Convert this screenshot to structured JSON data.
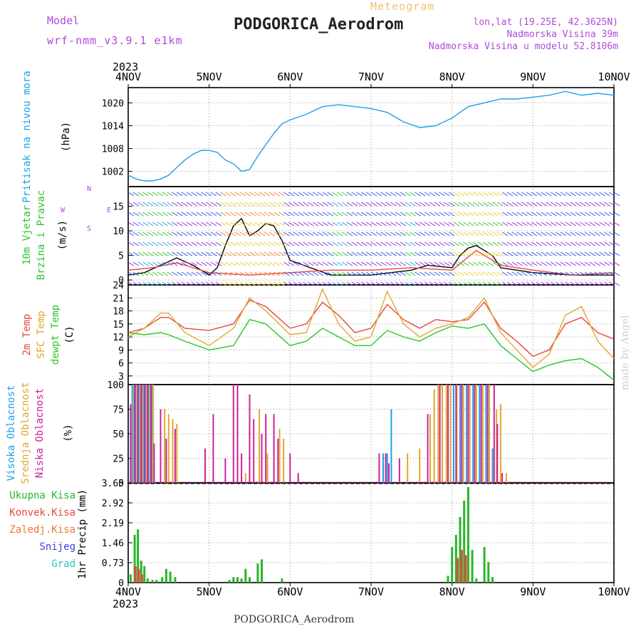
{
  "header": {
    "model_label": "Model",
    "model_version": "wrf-nmm_v3.9.1 e1km",
    "product": "Meteogram",
    "station": "PODGORICA_Aerodrom",
    "lonlat": "lon,lat (19.25E, 42.3625N)",
    "elevation": "Nadmorska Visina 39m",
    "model_elevation": "Nadmorska Visina u modelu 52.8106m"
  },
  "footer": {
    "station": "PODGORICA_Aerodrom",
    "credit": "made by Angel"
  },
  "colors": {
    "pressure": "#1ea0e6",
    "wind_label": "#30c030",
    "wind_units": "#b04ad8",
    "temp2m": "#e8463c",
    "sfc": "#e0a830",
    "dewpt": "#28c828",
    "high_cloud": "#1ea0e6",
    "mid_cloud": "#e0a830",
    "low_cloud": "#cc2299",
    "total_precip": "#2ab42a",
    "conv_precip": "#e8463c",
    "frz_precip": "#f07830",
    "snow": "#4040e0",
    "hail": "#30c0c0"
  },
  "chart_data": [
    {
      "type": "line",
      "id": "pressure",
      "ylabel": "Pritisak na nivou mora",
      "units": "(hPa)",
      "x_ticks": [
        "4NOV",
        "5NOV",
        "6NOV",
        "7NOV",
        "8NOV",
        "9NOV",
        "10NOV"
      ],
      "x_year": "2023",
      "ylim": [
        998,
        1024
      ],
      "yticks": [
        1002,
        1008,
        1014,
        1020
      ],
      "grid": true,
      "series": [
        {
          "color": "#1ea0e6",
          "x": [
            0,
            0.1,
            0.2,
            0.3,
            0.4,
            0.5,
            0.6,
            0.7,
            0.8,
            0.9,
            1.0,
            1.1,
            1.2,
            1.3,
            1.4,
            1.5,
            1.6,
            1.7,
            1.8,
            1.9,
            2.0,
            2.2,
            2.4,
            2.6,
            2.8,
            3.0,
            3.2,
            3.4,
            3.6,
            3.8,
            4.0,
            4.2,
            4.4,
            4.6,
            4.8,
            5.0,
            5.2,
            5.4,
            5.6,
            5.8,
            6.0
          ],
          "values": [
            1001,
            1000,
            999.5,
            999.5,
            1000,
            1001,
            1003,
            1005,
            1006.5,
            1007.5,
            1007.5,
            1007,
            1005,
            1004,
            1002,
            1002.5,
            1006,
            1009,
            1012,
            1014.5,
            1015.5,
            1017,
            1019,
            1019.5,
            1019,
            1018.5,
            1017.5,
            1015,
            1013.5,
            1014,
            1016,
            1019,
            1020,
            1021,
            1021,
            1021.5,
            1022,
            1023,
            1022,
            1022.5,
            1022
          ]
        }
      ]
    },
    {
      "type": "line",
      "id": "wind",
      "ylabel": [
        "10m Vjetar",
        "Brzina i Pravac"
      ],
      "units": "(m/s)",
      "compass": [
        "N",
        "E",
        "S",
        "W"
      ],
      "ylim": [
        -1,
        19
      ],
      "yticks": [
        0,
        5,
        10,
        15
      ],
      "grid": true,
      "series": [
        {
          "color": "#000000",
          "x": [
            0,
            0.2,
            0.4,
            0.6,
            0.8,
            1.0,
            1.1,
            1.2,
            1.3,
            1.4,
            1.5,
            1.6,
            1.7,
            1.8,
            1.9,
            2.0,
            2.5,
            3.0,
            3.5,
            3.7,
            4.0,
            4.1,
            4.2,
            4.3,
            4.4,
            4.5,
            4.6,
            4.8,
            5.0,
            5.5,
            6.0
          ],
          "values": [
            1,
            1.5,
            3,
            4.5,
            3,
            1,
            2.5,
            7,
            11,
            12.5,
            9,
            10,
            11.5,
            11,
            8,
            4,
            1,
            1,
            2,
            3,
            2.5,
            5,
            6.5,
            7,
            6,
            5,
            2.5,
            2,
            1.5,
            1,
            1
          ]
        },
        {
          "color": "#e8463c",
          "x": [
            0,
            0.3,
            0.6,
            1.0,
            1.5,
            2.0,
            2.5,
            3.0,
            3.5,
            4.0,
            4.3,
            4.6,
            5.0,
            5.5,
            6.0
          ],
          "values": [
            2,
            2.5,
            3.5,
            1.5,
            1,
            1.5,
            2,
            2,
            2.5,
            2,
            6,
            3,
            2,
            1,
            1.5
          ]
        }
      ]
    },
    {
      "type": "line",
      "id": "temperature",
      "ylabel": [
        "2m Temp",
        "SFC Temp",
        "dewpt Temp"
      ],
      "units": "(C)",
      "ylim": [
        1,
        24
      ],
      "yticks": [
        3,
        6,
        9,
        12,
        15,
        18,
        21,
        24
      ],
      "grid": true,
      "series": [
        {
          "name": "2m Temp",
          "color": "#e8463c",
          "x": [
            0,
            0.2,
            0.4,
            0.5,
            0.7,
            1.0,
            1.3,
            1.5,
            1.7,
            2.0,
            2.2,
            2.4,
            2.6,
            2.8,
            3.0,
            3.2,
            3.4,
            3.6,
            3.8,
            4.0,
            4.2,
            4.4,
            4.6,
            4.8,
            5.0,
            5.2,
            5.4,
            5.6,
            5.8,
            6.0
          ],
          "values": [
            13,
            14,
            16.5,
            16.5,
            14,
            13.5,
            15,
            20.5,
            19,
            14,
            15,
            20,
            17,
            13,
            14,
            19.5,
            16,
            14,
            16,
            15.5,
            16,
            20,
            14,
            11,
            7.5,
            9,
            15,
            16.5,
            13,
            11.5
          ]
        },
        {
          "name": "SFC Temp",
          "color": "#e0a830",
          "x": [
            0,
            0.2,
            0.4,
            0.5,
            0.7,
            1.0,
            1.3,
            1.5,
            1.7,
            2.0,
            2.2,
            2.4,
            2.6,
            2.8,
            3.0,
            3.2,
            3.4,
            3.6,
            3.8,
            4.0,
            4.2,
            4.4,
            4.6,
            4.8,
            5.0,
            5.2,
            5.4,
            5.6,
            5.8,
            6.0
          ],
          "values": [
            12,
            14,
            17.5,
            17.5,
            13,
            10,
            14,
            21,
            18,
            12.5,
            13,
            23,
            15,
            11,
            12,
            22.5,
            15,
            12,
            14,
            15,
            16.5,
            21,
            13,
            9,
            5,
            8,
            17,
            19,
            11,
            7
          ]
        },
        {
          "name": "dewpt Temp",
          "color": "#28c828",
          "x": [
            0,
            0.2,
            0.4,
            0.5,
            0.7,
            1.0,
            1.3,
            1.5,
            1.7,
            2.0,
            2.2,
            2.4,
            2.6,
            2.8,
            3.0,
            3.2,
            3.4,
            3.6,
            3.8,
            4.0,
            4.2,
            4.4,
            4.6,
            4.8,
            5.0,
            5.2,
            5.4,
            5.6,
            5.8,
            6.0
          ],
          "values": [
            13,
            12.5,
            13,
            12.5,
            11,
            9,
            10,
            16,
            15,
            10,
            11,
            14,
            12,
            10,
            10,
            13.5,
            12,
            11,
            13,
            14.5,
            14,
            15,
            10,
            7,
            4,
            5.5,
            6.5,
            7,
            5,
            2
          ]
        }
      ]
    },
    {
      "type": "bar",
      "id": "clouds",
      "ylabel": [
        "Visoka Oblacnost",
        "Srednja Oblacnost",
        "Niska Oblacnost"
      ],
      "units": "(%)",
      "ylim": [
        0,
        100
      ],
      "yticks": [
        0,
        25,
        50,
        75,
        100
      ],
      "grid": true,
      "series": [
        {
          "name": "Visoka Oblacnost",
          "color": "#1ea0e6",
          "x": [
            0.05,
            0.09,
            0.13,
            0.17,
            0.21,
            0.25,
            0.29,
            3.15,
            3.2,
            3.25,
            4.02,
            4.1,
            4.18,
            4.26,
            4.34,
            4.42,
            4.5
          ],
          "values": [
            100,
            100,
            100,
            100,
            100,
            100,
            100,
            30,
            30,
            75,
            100,
            100,
            100,
            100,
            100,
            100,
            35
          ]
        },
        {
          "name": "Srednja Oblacnost",
          "color": "#e0a830",
          "x": [
            0.07,
            0.11,
            0.15,
            0.19,
            0.23,
            0.27,
            0.31,
            0.45,
            0.5,
            0.55,
            0.6,
            1.45,
            1.62,
            1.72,
            1.87,
            1.92,
            3.45,
            3.6,
            3.73,
            3.78,
            3.83,
            3.88,
            3.93,
            3.98,
            4.06,
            4.14,
            4.22,
            4.3,
            4.38,
            4.46,
            4.55,
            4.6,
            4.67
          ],
          "values": [
            100,
            100,
            100,
            100,
            100,
            100,
            100,
            75,
            70,
            65,
            60,
            10,
            75,
            30,
            55,
            45,
            30,
            35,
            70,
            95,
            100,
            100,
            100,
            100,
            100,
            100,
            100,
            100,
            100,
            100,
            75,
            80,
            10
          ]
        },
        {
          "name": "Niska Oblacnost",
          "color": "#cc2299",
          "x": [
            0.03,
            0.08,
            0.12,
            0.16,
            0.2,
            0.24,
            0.28,
            0.32,
            0.4,
            0.47,
            0.58,
            0.95,
            1.05,
            1.2,
            1.3,
            1.35,
            1.4,
            1.5,
            1.55,
            1.65,
            1.7,
            1.8,
            1.85,
            2.0,
            2.1,
            3.1,
            3.18,
            3.22,
            3.35,
            3.7,
            3.85,
            3.95,
            4.05,
            4.12,
            4.2,
            4.28,
            4.36,
            4.44,
            4.52,
            4.56,
            4.62
          ],
          "values": [
            80,
            100,
            100,
            100,
            100,
            100,
            100,
            40,
            75,
            45,
            55,
            35,
            70,
            25,
            100,
            100,
            30,
            90,
            65,
            50,
            70,
            70,
            45,
            30,
            10,
            30,
            30,
            20,
            25,
            70,
            100,
            100,
            100,
            100,
            100,
            100,
            100,
            100,
            100,
            60,
            10
          ]
        }
      ]
    },
    {
      "type": "bar",
      "id": "precip",
      "ylabel": "1hr Precip (mm)",
      "legend": [
        "Ukupna Kisa",
        "Konvek.Kisa",
        "Zaledj.Kisa",
        "Snijeg",
        "Grad"
      ],
      "ylim": [
        0,
        3.65
      ],
      "yticks": [
        0,
        0.73,
        1.46,
        2.19,
        2.92,
        3.65
      ],
      "grid": true,
      "series": [
        {
          "name": "Ukupna Kisa",
          "color": "#2ab42a",
          "x": [
            0.03,
            0.08,
            0.12,
            0.16,
            0.2,
            0.24,
            0.3,
            0.35,
            0.42,
            0.47,
            0.52,
            0.58,
            1.25,
            1.3,
            1.35,
            1.4,
            1.45,
            1.5,
            1.6,
            1.65,
            1.9,
            3.95,
            4.0,
            4.05,
            4.1,
            4.15,
            4.2,
            4.25,
            4.3,
            4.4,
            4.45,
            4.5
          ],
          "values": [
            0.3,
            1.75,
            1.95,
            0.8,
            0.6,
            0.15,
            0.1,
            0.1,
            0.2,
            0.5,
            0.4,
            0.2,
            0.1,
            0.2,
            0.2,
            0.15,
            0.5,
            0.2,
            0.7,
            0.85,
            0.15,
            0.25,
            1.3,
            1.75,
            2.4,
            3.0,
            3.5,
            1.2,
            0.15,
            1.3,
            0.75,
            0.2
          ]
        },
        {
          "name": "Konvek.Kisa",
          "color": "#e8463c",
          "x": [
            0.09,
            0.13,
            0.17,
            4.07,
            4.12,
            4.17
          ],
          "values": [
            0.6,
            0.5,
            0.3,
            0.9,
            1.2,
            1.0
          ]
        }
      ]
    }
  ]
}
